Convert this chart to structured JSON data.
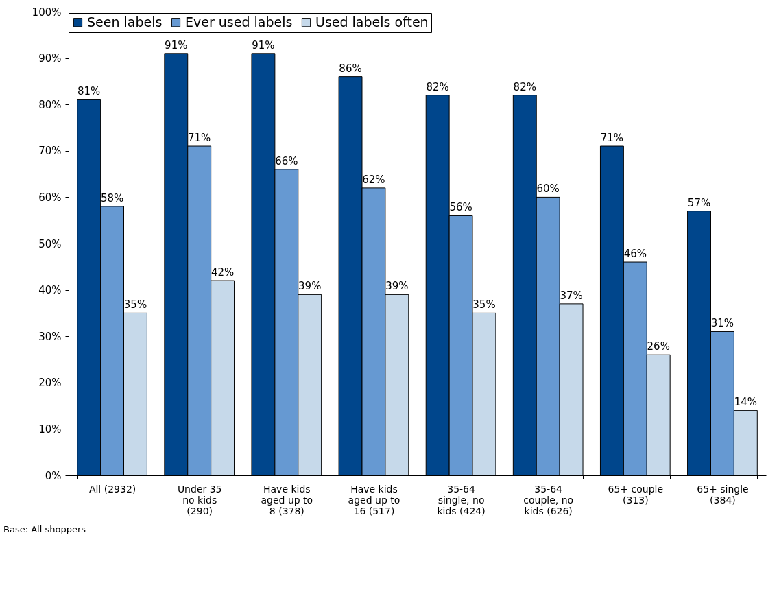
{
  "chart_data": {
    "type": "bar",
    "categories": [
      "All (2932)",
      "Under 35 no kids (290)",
      "Have kids aged up to 8 (378)",
      "Have kids aged up to 16 (517)",
      "35-64 single, no kids (424)",
      "35-64 couple, no kids (626)",
      "65+ couple (313)",
      "65+ single (384)"
    ],
    "series": [
      {
        "name": "Seen labels",
        "color": "#00468c",
        "values": [
          81,
          91,
          91,
          86,
          82,
          82,
          71,
          57
        ],
        "value_labels": [
          "81%",
          "91%",
          "91%",
          "86%",
          "82%",
          "82%",
          "71%",
          "57%"
        ]
      },
      {
        "name": "Ever used labels",
        "color": "#6699d2",
        "values": [
          58,
          71,
          66,
          62,
          56,
          60,
          46,
          31
        ],
        "value_labels": [
          "58%",
          "71%",
          "66%",
          "62%",
          "56%",
          "60%",
          "46%",
          "31%"
        ]
      },
      {
        "name": "Used labels often",
        "color": "#c6d9ea",
        "values": [
          35,
          42,
          39,
          39,
          35,
          37,
          26,
          14
        ],
        "value_labels": [
          "35%",
          "42%",
          "39%",
          "39%",
          "35%",
          "37%",
          "26%",
          "14%"
        ]
      }
    ],
    "ylim": [
      0,
      100
    ],
    "yticks": [
      {
        "value": 0,
        "label": "0%"
      },
      {
        "value": 10,
        "label": "10%"
      },
      {
        "value": 20,
        "label": "20%"
      },
      {
        "value": 30,
        "label": "30%"
      },
      {
        "value": 40,
        "label": "40%"
      },
      {
        "value": 50,
        "label": "50%"
      },
      {
        "value": 60,
        "label": "60%"
      },
      {
        "value": 70,
        "label": "70%"
      },
      {
        "value": 80,
        "label": "80%"
      },
      {
        "value": 90,
        "label": "90%"
      },
      {
        "value": 100,
        "label": "100%"
      }
    ],
    "legend": "top",
    "annotations": [
      "Base: All shoppers"
    ]
  }
}
